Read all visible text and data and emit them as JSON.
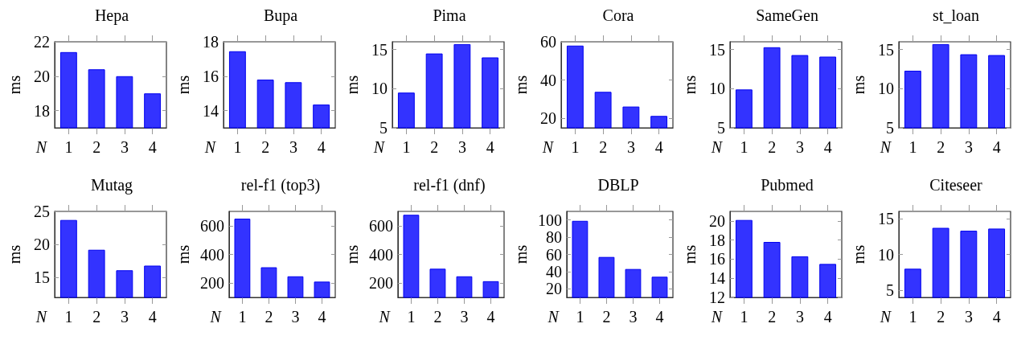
{
  "chart_data": [
    {
      "type": "bar",
      "title": "Hepa",
      "xlabel": "N",
      "ylabel": "ms",
      "categories": [
        "1",
        "2",
        "3",
        "4"
      ],
      "values": [
        21.4,
        20.4,
        20.0,
        19.0
      ],
      "color": "#3333ff",
      "ylim": [
        17,
        22
      ],
      "yticks": [
        18,
        20,
        22
      ]
    },
    {
      "type": "bar",
      "title": "Bupa",
      "xlabel": "N",
      "ylabel": "ms",
      "categories": [
        "1",
        "2",
        "3",
        "4"
      ],
      "values": [
        17.45,
        15.8,
        15.65,
        14.35
      ],
      "color": "#3333ff",
      "ylim": [
        13,
        18
      ],
      "yticks": [
        14,
        16,
        18
      ]
    },
    {
      "type": "bar",
      "title": "Pima",
      "xlabel": "N",
      "ylabel": "ms",
      "categories": [
        "1",
        "2",
        "3",
        "4"
      ],
      "values": [
        9.5,
        14.5,
        15.7,
        14.0
      ],
      "color": "#3333ff",
      "ylim": [
        5,
        16
      ],
      "yticks": [
        5,
        10,
        15
      ]
    },
    {
      "type": "bar",
      "title": "Cora",
      "xlabel": "N",
      "ylabel": "ms",
      "categories": [
        "1",
        "2",
        "3",
        "4"
      ],
      "values": [
        58,
        33.8,
        26.1,
        21.2
      ],
      "color": "#3333ff",
      "ylim": [
        15,
        60
      ],
      "yticks": [
        20,
        40,
        60
      ]
    },
    {
      "type": "bar",
      "title": "SameGen",
      "xlabel": "N",
      "ylabel": "ms",
      "categories": [
        "1",
        "2",
        "3",
        "4"
      ],
      "values": [
        9.9,
        15.3,
        14.3,
        14.1
      ],
      "color": "#3333ff",
      "ylim": [
        5,
        16
      ],
      "yticks": [
        5,
        10,
        15
      ]
    },
    {
      "type": "bar",
      "title": "st_loan",
      "xlabel": "N",
      "ylabel": "ms",
      "categories": [
        "1",
        "2",
        "3",
        "4"
      ],
      "values": [
        12.3,
        15.7,
        14.4,
        14.3
      ],
      "color": "#3333ff",
      "ylim": [
        5,
        16
      ],
      "yticks": [
        5,
        10,
        15
      ]
    },
    {
      "type": "bar",
      "title": "Mutag",
      "xlabel": "N",
      "ylabel": "ms",
      "categories": [
        "1",
        "2",
        "3",
        "4"
      ],
      "values": [
        23.7,
        19.2,
        16.1,
        16.8
      ],
      "color": "#3333ff",
      "ylim": [
        12,
        25
      ],
      "yticks": [
        15,
        20,
        25
      ]
    },
    {
      "type": "bar",
      "title": "rel-f1 (top3)",
      "xlabel": "N",
      "ylabel": "ms",
      "categories": [
        "1",
        "2",
        "3",
        "4"
      ],
      "values": [
        649,
        310,
        247,
        210
      ],
      "color": "#3333ff",
      "ylim": [
        100,
        700
      ],
      "yticks": [
        200,
        400,
        600
      ]
    },
    {
      "type": "bar",
      "title": "rel-f1 (dnf)",
      "xlabel": "N",
      "ylabel": "ms",
      "categories": [
        "1",
        "2",
        "3",
        "4"
      ],
      "values": [
        676,
        300,
        247,
        213
      ],
      "color": "#3333ff",
      "ylim": [
        100,
        700
      ],
      "yticks": [
        200,
        400,
        600
      ]
    },
    {
      "type": "bar",
      "title": "DBLP",
      "xlabel": "N",
      "ylabel": "ms",
      "categories": [
        "1",
        "2",
        "3",
        "4"
      ],
      "values": [
        99,
        57,
        43,
        34
      ],
      "color": "#3333ff",
      "ylim": [
        10,
        110
      ],
      "yticks": [
        20,
        40,
        60,
        80,
        100
      ]
    },
    {
      "type": "bar",
      "title": "Pubmed",
      "xlabel": "N",
      "ylabel": "ms",
      "categories": [
        "1",
        "2",
        "3",
        "4"
      ],
      "values": [
        20.1,
        17.8,
        16.3,
        15.5
      ],
      "color": "#3333ff",
      "ylim": [
        12,
        21
      ],
      "yticks": [
        12,
        14,
        16,
        18,
        20
      ]
    },
    {
      "type": "bar",
      "title": "Citeseer",
      "xlabel": "N",
      "ylabel": "ms",
      "categories": [
        "1",
        "2",
        "3",
        "4"
      ],
      "values": [
        8.0,
        13.7,
        13.3,
        13.6
      ],
      "color": "#3333ff",
      "ylim": [
        4,
        16
      ],
      "yticks": [
        5,
        10,
        15
      ]
    }
  ]
}
